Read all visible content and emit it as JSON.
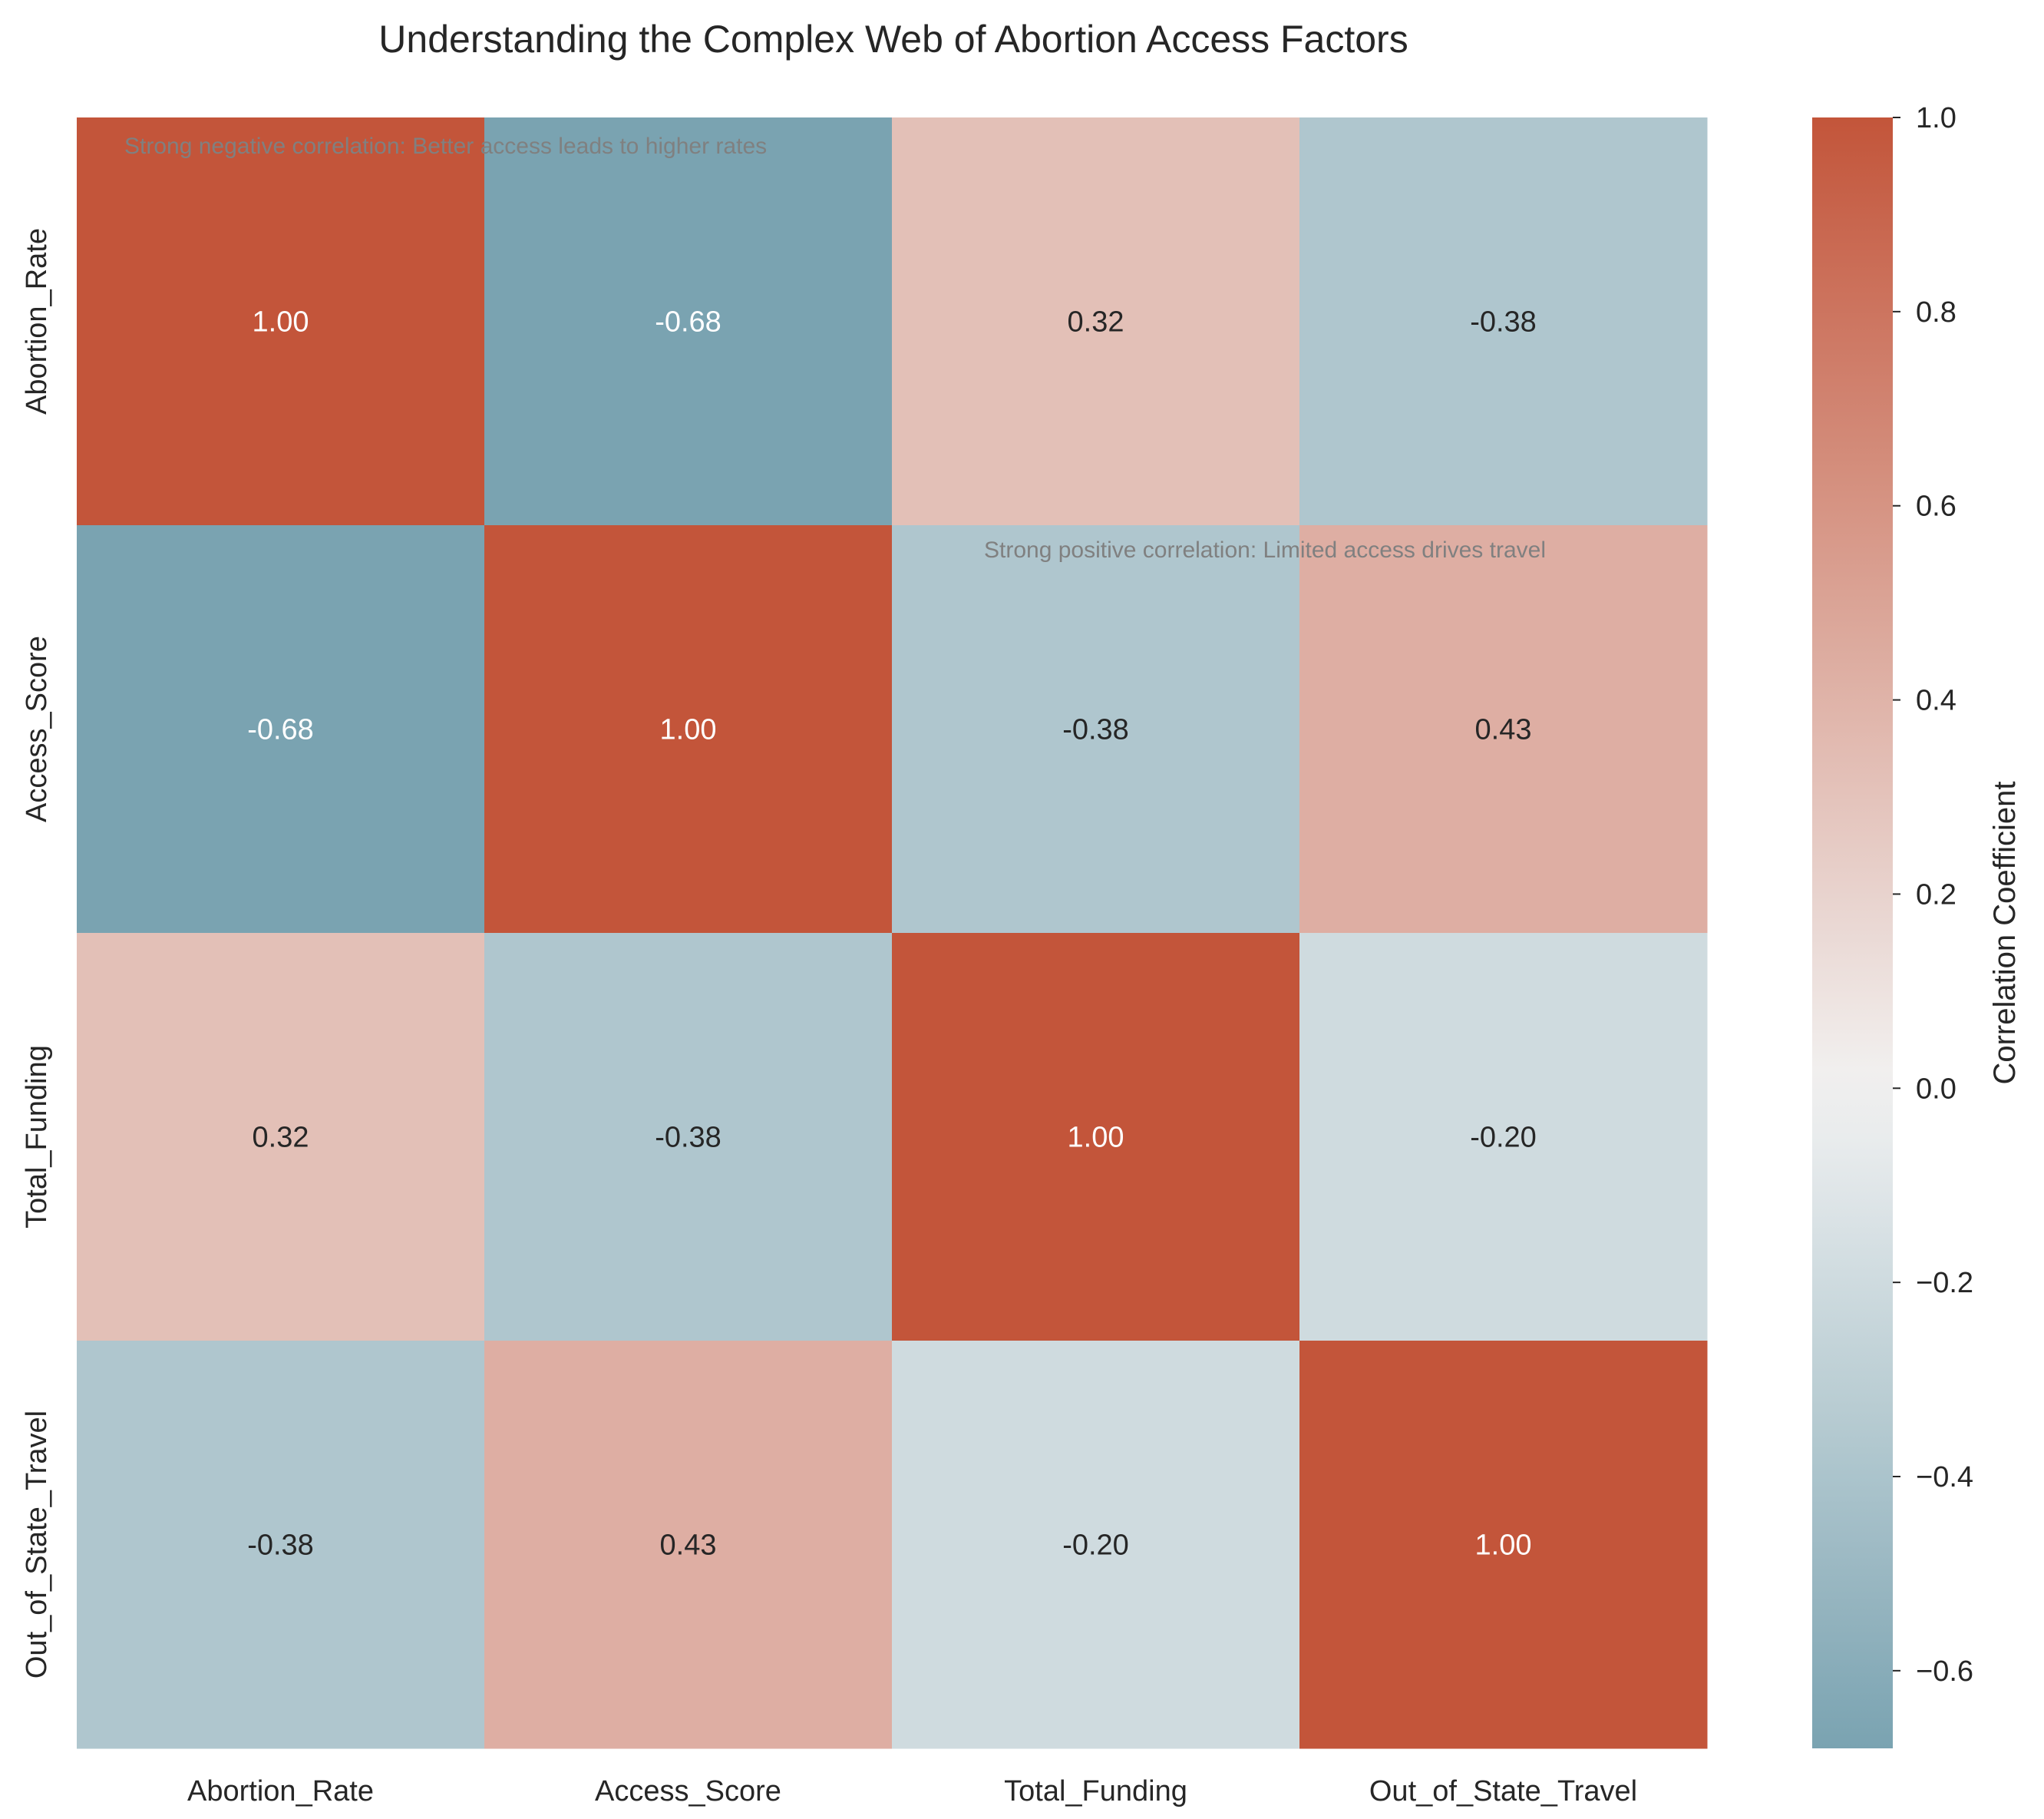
{
  "chart_data": {
    "type": "heatmap",
    "title": "Understanding the Complex Web of Abortion Access Factors",
    "row_labels": [
      "Abortion_Rate",
      "Access_Score",
      "Total_Funding",
      "Out_of_State_Travel"
    ],
    "col_labels": [
      "Abortion_Rate",
      "Access_Score",
      "Total_Funding",
      "Out_of_State_Travel"
    ],
    "values": [
      [
        1.0,
        -0.68,
        0.32,
        -0.38
      ],
      [
        -0.68,
        1.0,
        -0.38,
        0.43
      ],
      [
        0.32,
        -0.38,
        1.0,
        -0.2
      ],
      [
        -0.38,
        0.43,
        -0.2,
        1.0
      ]
    ],
    "cell_labels": [
      [
        "1.00",
        "-0.68",
        "0.32",
        "-0.38"
      ],
      [
        "-0.68",
        "1.00",
        "-0.38",
        "0.43"
      ],
      [
        "0.32",
        "-0.38",
        "1.00",
        "-0.20"
      ],
      [
        "-0.38",
        "0.43",
        "-0.20",
        "1.00"
      ]
    ],
    "annotations": [
      {
        "text": "Strong negative correlation: Better access leads to higher rates",
        "row": 0,
        "col": 0
      },
      {
        "text": "Strong positive correlation: Limited access drives travel",
        "row": 1,
        "col": 2
      }
    ],
    "colorbar": {
      "label": "Correlation Coefficient",
      "range": [
        -0.68,
        1.0
      ],
      "ticks": [
        1.0,
        0.8,
        0.6,
        0.4,
        0.2,
        0.0,
        -0.2,
        -0.4,
        -0.6
      ],
      "tick_labels": [
        "1.0",
        "0.8",
        "0.6",
        "0.4",
        "0.2",
        "0.0",
        "−0.2",
        "−0.4",
        "−0.6"
      ],
      "colors": {
        "negative": "#7aa3b1",
        "center": "#f2f2f2",
        "positive": "#c3553a"
      }
    },
    "text_colors": {
      "dark": "#262626",
      "light": "#ffffff",
      "annotation": "#808080"
    }
  }
}
